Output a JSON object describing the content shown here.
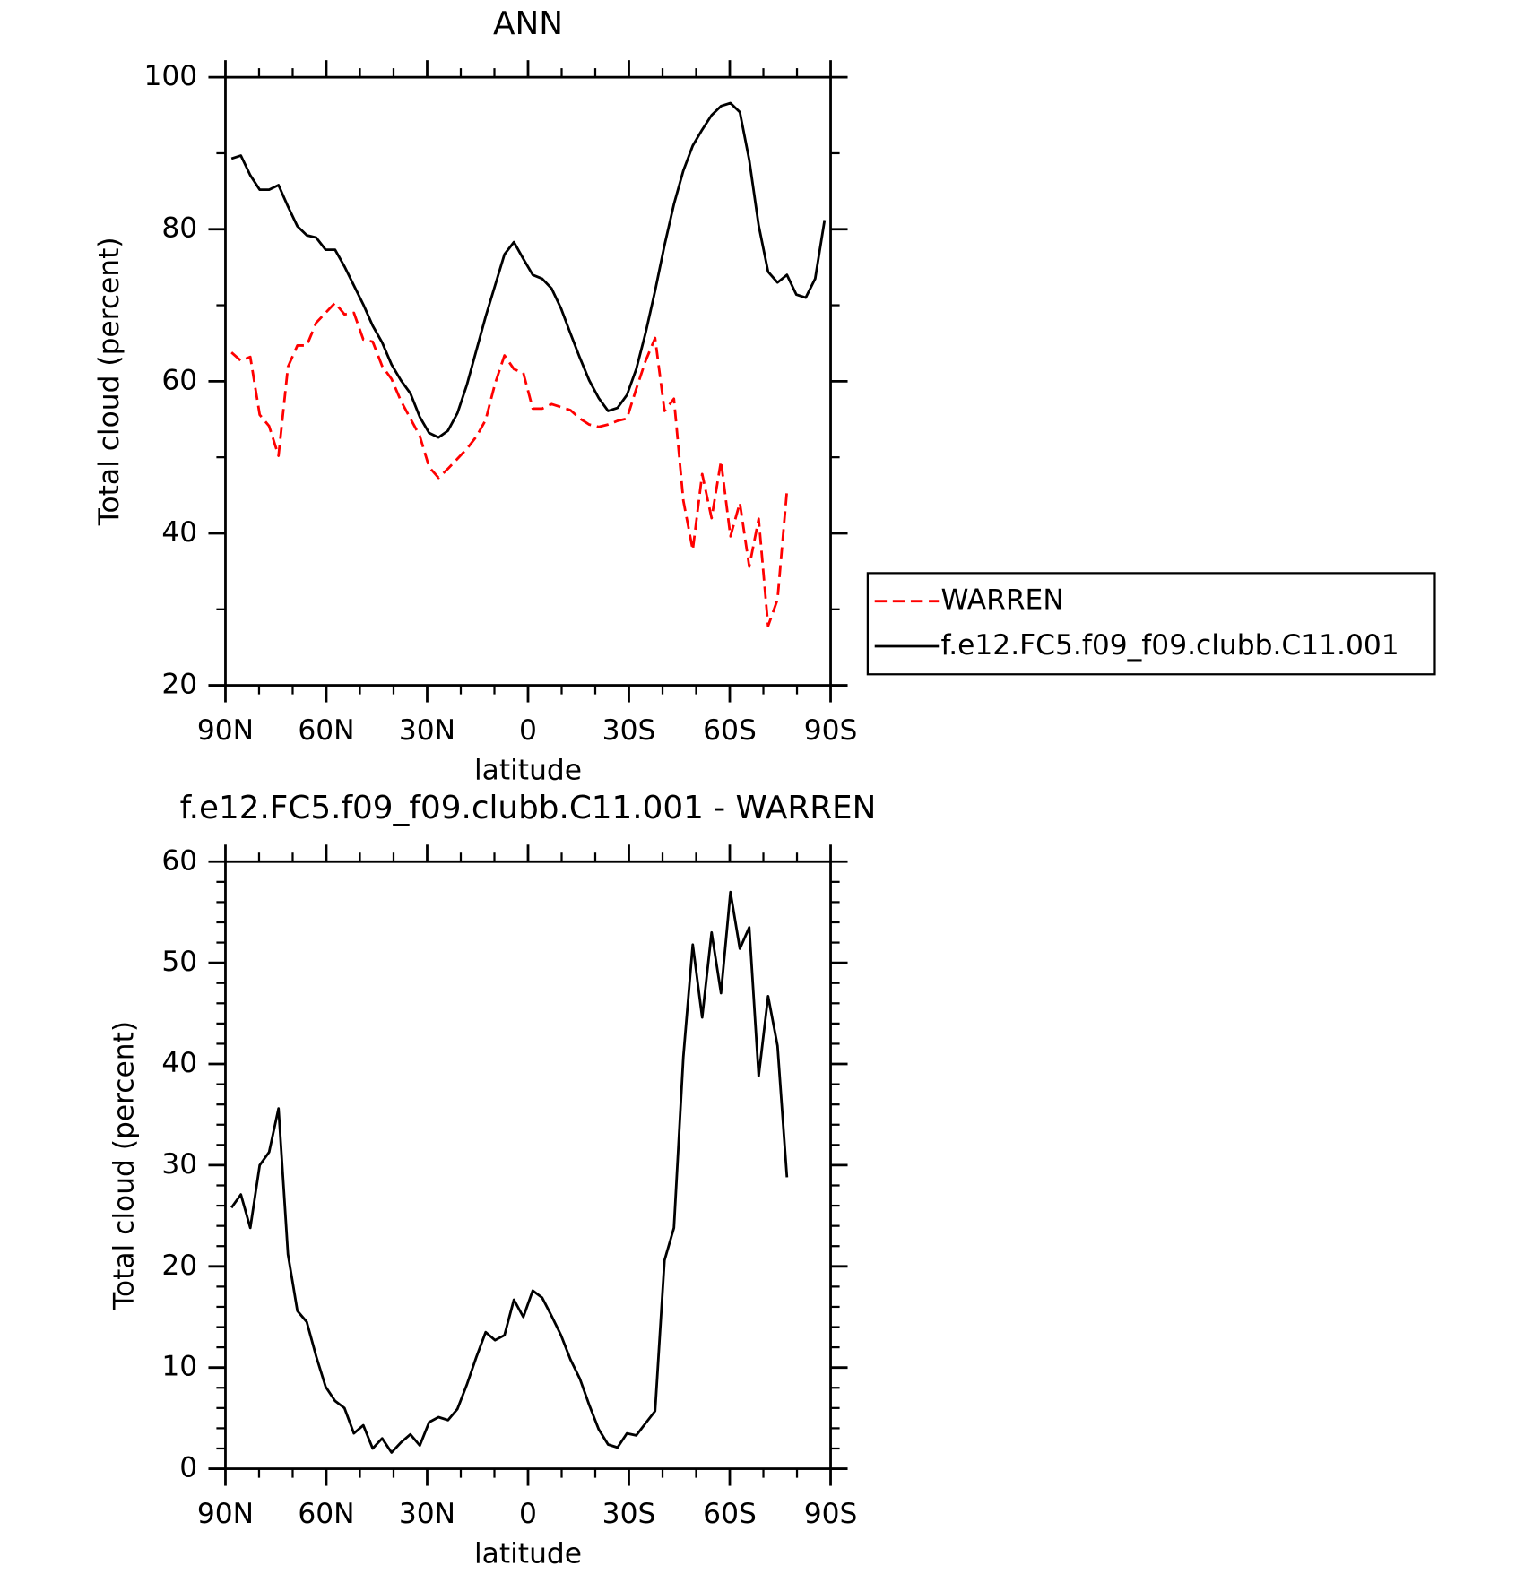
{
  "chart_data": [
    {
      "type": "line",
      "title": "ANN",
      "xlabel": "latitude",
      "ylabel": "Total cloud (percent)",
      "x": [
        88.2,
        85.4,
        82.6,
        79.8,
        77,
        74.2,
        71.4,
        68.6,
        65.8,
        63,
        60.2,
        57.4,
        54.6,
        51.8,
        49,
        46.2,
        43.4,
        40.6,
        37.8,
        35,
        32.2,
        29.4,
        26.6,
        23.8,
        21,
        18.2,
        15.4,
        12.6,
        9.8,
        7,
        4.2,
        1.4,
        -1.4,
        -4.2,
        -7,
        -9.8,
        -12.6,
        -15.4,
        -18.2,
        -21,
        -23.8,
        -26.6,
        -29.4,
        -32.2,
        -35,
        -37.8,
        -40.6,
        -43.4,
        -46.2,
        -49,
        -51.8,
        -54.6,
        -57.4,
        -60.2,
        -63,
        -65.8,
        -68.6,
        -71.4,
        -74.2,
        -77,
        -79.8,
        -82.6,
        -85.4,
        -88.2
      ],
      "series": [
        {
          "name": "WARREN",
          "color": "#ff0000",
          "dashed": true,
          "values": [
            63.8,
            62.7,
            63.2,
            55.6,
            54.1,
            50.2,
            61.9,
            64.7,
            64.7,
            67.7,
            69.0,
            70.3,
            68.8,
            69.0,
            65.5,
            65.2,
            62.0,
            60.3,
            57.4,
            55.1,
            52.8,
            48.7,
            47.3,
            48.5,
            49.8,
            51.1,
            52.7,
            54.9,
            59.7,
            63.4,
            61.6,
            61.1,
            56.4,
            56.4,
            57.0,
            56.6,
            56.2,
            55.1,
            54.3,
            54.0,
            54.3,
            54.8,
            55.1,
            59.0,
            62.7,
            65.7,
            56.1,
            57.7,
            44.3,
            37.8,
            47.8,
            42.0,
            49.5,
            39.6,
            44.0,
            35.6,
            41.9,
            27.8,
            31.3,
            45.6,
            null,
            null,
            null,
            null
          ]
        },
        {
          "name": "f.e12.FC5.f09_f09.clubb.C11.001",
          "color": "#000000",
          "dashed": false,
          "values": [
            89.3,
            89.7,
            87.1,
            85.2,
            85.2,
            85.8,
            83.0,
            80.4,
            79.2,
            78.9,
            77.3,
            77.3,
            75.1,
            72.6,
            70.1,
            67.3,
            65.1,
            62.2,
            60.1,
            58.4,
            55.3,
            53.2,
            52.6,
            53.5,
            55.8,
            59.5,
            64.0,
            68.5,
            72.6,
            76.7,
            78.3,
            76.1,
            74.0,
            73.5,
            72.2,
            69.6,
            66.3,
            63.1,
            60.1,
            57.8,
            56.1,
            56.5,
            58.2,
            61.6,
            66.4,
            71.9,
            77.9,
            83.3,
            87.7,
            91.0,
            93.1,
            95.0,
            96.2,
            96.6,
            95.4,
            89.1,
            80.5,
            74.4,
            73.0,
            74.0,
            71.4,
            71.0,
            73.5,
            81.2
          ]
        }
      ],
      "xlim": [
        90,
        -90
      ],
      "xticks": [
        {
          "value": 90,
          "label": "90N"
        },
        {
          "value": 60,
          "label": "60N"
        },
        {
          "value": 30,
          "label": "30N"
        },
        0,
        {
          "value": -30,
          "label": "30S"
        },
        {
          "value": -60,
          "label": "60S"
        },
        {
          "value": -90,
          "label": "90S"
        }
      ],
      "ylim": [
        20,
        100
      ],
      "yticks": [
        20,
        40,
        60,
        80,
        100
      ],
      "legend": "right"
    },
    {
      "type": "line",
      "title": "f.e12.FC5.f09_f09.clubb.C11.001 - WARREN",
      "xlabel": "latitude",
      "ylabel": "Total cloud (percent)",
      "x": [
        88.2,
        85.4,
        82.6,
        79.8,
        77,
        74.2,
        71.4,
        68.6,
        65.8,
        63,
        60.2,
        57.4,
        54.6,
        51.8,
        49,
        46.2,
        43.4,
        40.6,
        37.8,
        35,
        32.2,
        29.4,
        26.6,
        23.8,
        21,
        18.2,
        15.4,
        12.6,
        9.8,
        7,
        4.2,
        1.4,
        -1.4,
        -4.2,
        -7,
        -9.8,
        -12.6,
        -15.4,
        -18.2,
        -21,
        -23.8,
        -26.6,
        -29.4,
        -32.2,
        -35,
        -37.8,
        -40.6,
        -43.4,
        -46.2,
        -49,
        -51.8,
        -54.6,
        -57.4,
        -60.2,
        -63,
        -65.8,
        -68.6,
        -71.4,
        -74.2,
        -77
      ],
      "color": "#000000",
      "values": [
        25.8,
        27.1,
        23.8,
        30.0,
        31.3,
        35.6,
        21.2,
        15.6,
        14.5,
        11.1,
        8.1,
        6.7,
        6.0,
        3.5,
        4.3,
        2.0,
        3.0,
        1.6,
        2.6,
        3.4,
        2.3,
        4.6,
        5.1,
        4.8,
        5.9,
        8.3,
        11.0,
        13.5,
        12.7,
        13.2,
        16.7,
        15.0,
        17.6,
        16.9,
        15.1,
        13.2,
        10.8,
        8.9,
        6.3,
        3.9,
        2.4,
        2.1,
        3.5,
        3.3,
        4.5,
        5.7,
        20.6,
        23.8,
        40.7,
        51.8,
        44.6,
        53.0,
        47.0,
        57.0,
        51.4,
        53.5,
        38.8,
        46.7,
        41.8,
        28.8
      ],
      "xlim": [
        90,
        -90
      ],
      "xticks": [
        {
          "value": 90,
          "label": "90N"
        },
        {
          "value": 60,
          "label": "60N"
        },
        {
          "value": 30,
          "label": "30N"
        },
        0,
        {
          "value": -30,
          "label": "30S"
        },
        {
          "value": -60,
          "label": "60S"
        },
        {
          "value": -90,
          "label": "90S"
        }
      ],
      "ylim": [
        0,
        60
      ],
      "yticks": [
        0,
        10,
        20,
        30,
        40,
        50,
        60
      ]
    }
  ]
}
